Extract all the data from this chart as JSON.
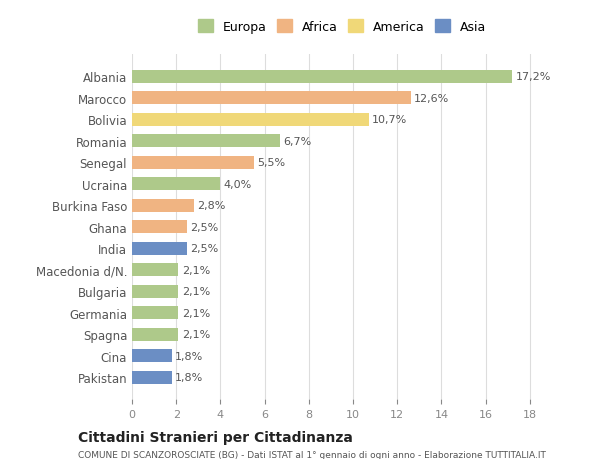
{
  "countries": [
    "Albania",
    "Marocco",
    "Bolivia",
    "Romania",
    "Senegal",
    "Ucraina",
    "Burkina Faso",
    "Ghana",
    "India",
    "Macedonia d/N.",
    "Bulgaria",
    "Germania",
    "Spagna",
    "Cina",
    "Pakistan"
  ],
  "values": [
    17.2,
    12.6,
    10.7,
    6.7,
    5.5,
    4.0,
    2.8,
    2.5,
    2.5,
    2.1,
    2.1,
    2.1,
    2.1,
    1.8,
    1.8
  ],
  "labels": [
    "17,2%",
    "12,6%",
    "10,7%",
    "6,7%",
    "5,5%",
    "4,0%",
    "2,8%",
    "2,5%",
    "2,5%",
    "2,1%",
    "2,1%",
    "2,1%",
    "2,1%",
    "1,8%",
    "1,8%"
  ],
  "continents": [
    "Europa",
    "Africa",
    "America",
    "Europa",
    "Africa",
    "Europa",
    "Africa",
    "Africa",
    "Asia",
    "Europa",
    "Europa",
    "Europa",
    "Europa",
    "Asia",
    "Asia"
  ],
  "colors": {
    "Europa": "#aec98a",
    "Africa": "#f0b482",
    "America": "#f0d878",
    "Asia": "#6b8ec4"
  },
  "legend_order": [
    "Europa",
    "Africa",
    "America",
    "Asia"
  ],
  "xlim": [
    0,
    19
  ],
  "xticks": [
    0,
    2,
    4,
    6,
    8,
    10,
    12,
    14,
    16,
    18
  ],
  "title": "Cittadini Stranieri per Cittadinanza",
  "subtitle": "COMUNE DI SCANZOROSCIATE (BG) - Dati ISTAT al 1° gennaio di ogni anno - Elaborazione TUTTITALIA.IT",
  "background_color": "#ffffff",
  "grid_color": "#dddddd"
}
